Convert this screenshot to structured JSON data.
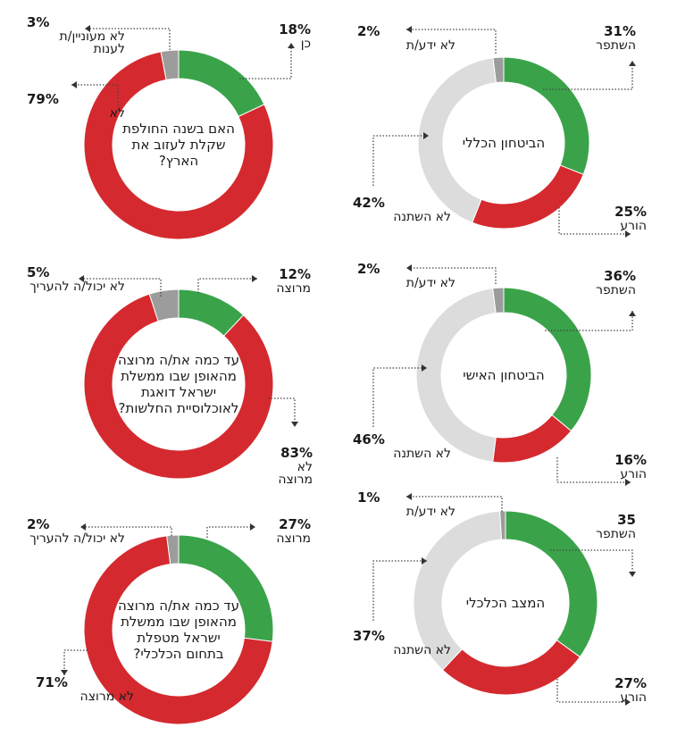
{
  "colors": {
    "green": "#3aa34a",
    "red": "#d42a2f",
    "gray": "#9c9c9c",
    "light": "#dcdcdc"
  },
  "chart_data": [
    {
      "type": "pie",
      "style": "donut",
      "center": "הביטחון הכללי",
      "slices": [
        {
          "label": "השתפר",
          "pct_text": "31%",
          "value": 31,
          "color": "green"
        },
        {
          "label": "הורע",
          "pct_text": "25%",
          "value": 25,
          "color": "red"
        },
        {
          "label": "לא השתנה",
          "pct_text": "42%",
          "value": 42,
          "color": "light"
        },
        {
          "label": "לא ידע/ת",
          "pct_text": "2%",
          "value": 2,
          "color": "gray"
        }
      ]
    },
    {
      "type": "pie",
      "style": "donut",
      "center": "הביטחון האישי",
      "slices": [
        {
          "label": "השתפר",
          "pct_text": "36%",
          "value": 36,
          "color": "green"
        },
        {
          "label": "הורע",
          "pct_text": "16%",
          "value": 16,
          "color": "red"
        },
        {
          "label": "לא השתנה",
          "pct_text": "46%",
          "value": 46,
          "color": "light"
        },
        {
          "label": "לא ידע/ת",
          "pct_text": "2%",
          "value": 2,
          "color": "gray"
        }
      ]
    },
    {
      "type": "pie",
      "style": "donut",
      "center": "המצב הכלכלי",
      "slices": [
        {
          "label": "השתפר",
          "pct_text": "35",
          "value": 35,
          "color": "green"
        },
        {
          "label": "הורע",
          "pct_text": "27%",
          "value": 27,
          "color": "red"
        },
        {
          "label": "לא השתנה",
          "pct_text": "37%",
          "value": 37,
          "color": "light"
        },
        {
          "label": "לא ידע/ת",
          "pct_text": "1%",
          "value": 1,
          "color": "gray"
        }
      ]
    },
    {
      "type": "pie",
      "style": "donut",
      "center": "האם בשנה החולפת שקלת לעזוב את הארץ?",
      "slices": [
        {
          "label": "כן",
          "pct_text": "18%",
          "value": 18,
          "color": "green"
        },
        {
          "label": "לא",
          "pct_text": "79%",
          "value": 79,
          "color": "red"
        },
        {
          "label": "לא מעוניין/ת לענות",
          "pct_text": "3%",
          "value": 3,
          "color": "gray"
        }
      ]
    },
    {
      "type": "pie",
      "style": "donut",
      "center": "עד כמה את/ה מרוצה מהאופן שבו ממשלת ישראל דואגת לאוכלוסיית החלשות?",
      "slices": [
        {
          "label": "מרוצה",
          "pct_text": "12%",
          "value": 12,
          "color": "green"
        },
        {
          "label": "לא מרוצה",
          "pct_text": "83%",
          "value": 83,
          "color": "red"
        },
        {
          "label": "לא יכול/ה להעריך",
          "pct_text": "5%",
          "value": 5,
          "color": "gray"
        }
      ]
    },
    {
      "type": "pie",
      "style": "donut",
      "center": "עד כמה את/ה מרוצה מהאופן שבו ממשלת ישראל מטפלת בתחום הכלכלי?",
      "slices": [
        {
          "label": "מרוצה",
          "pct_text": "27%",
          "value": 27,
          "color": "green"
        },
        {
          "label": "לא מרוצה",
          "pct_text": "71%",
          "value": 71,
          "color": "red"
        },
        {
          "label": "לא יכול/ה להעריך",
          "pct_text": "2%",
          "value": 2,
          "color": "gray"
        }
      ]
    }
  ]
}
